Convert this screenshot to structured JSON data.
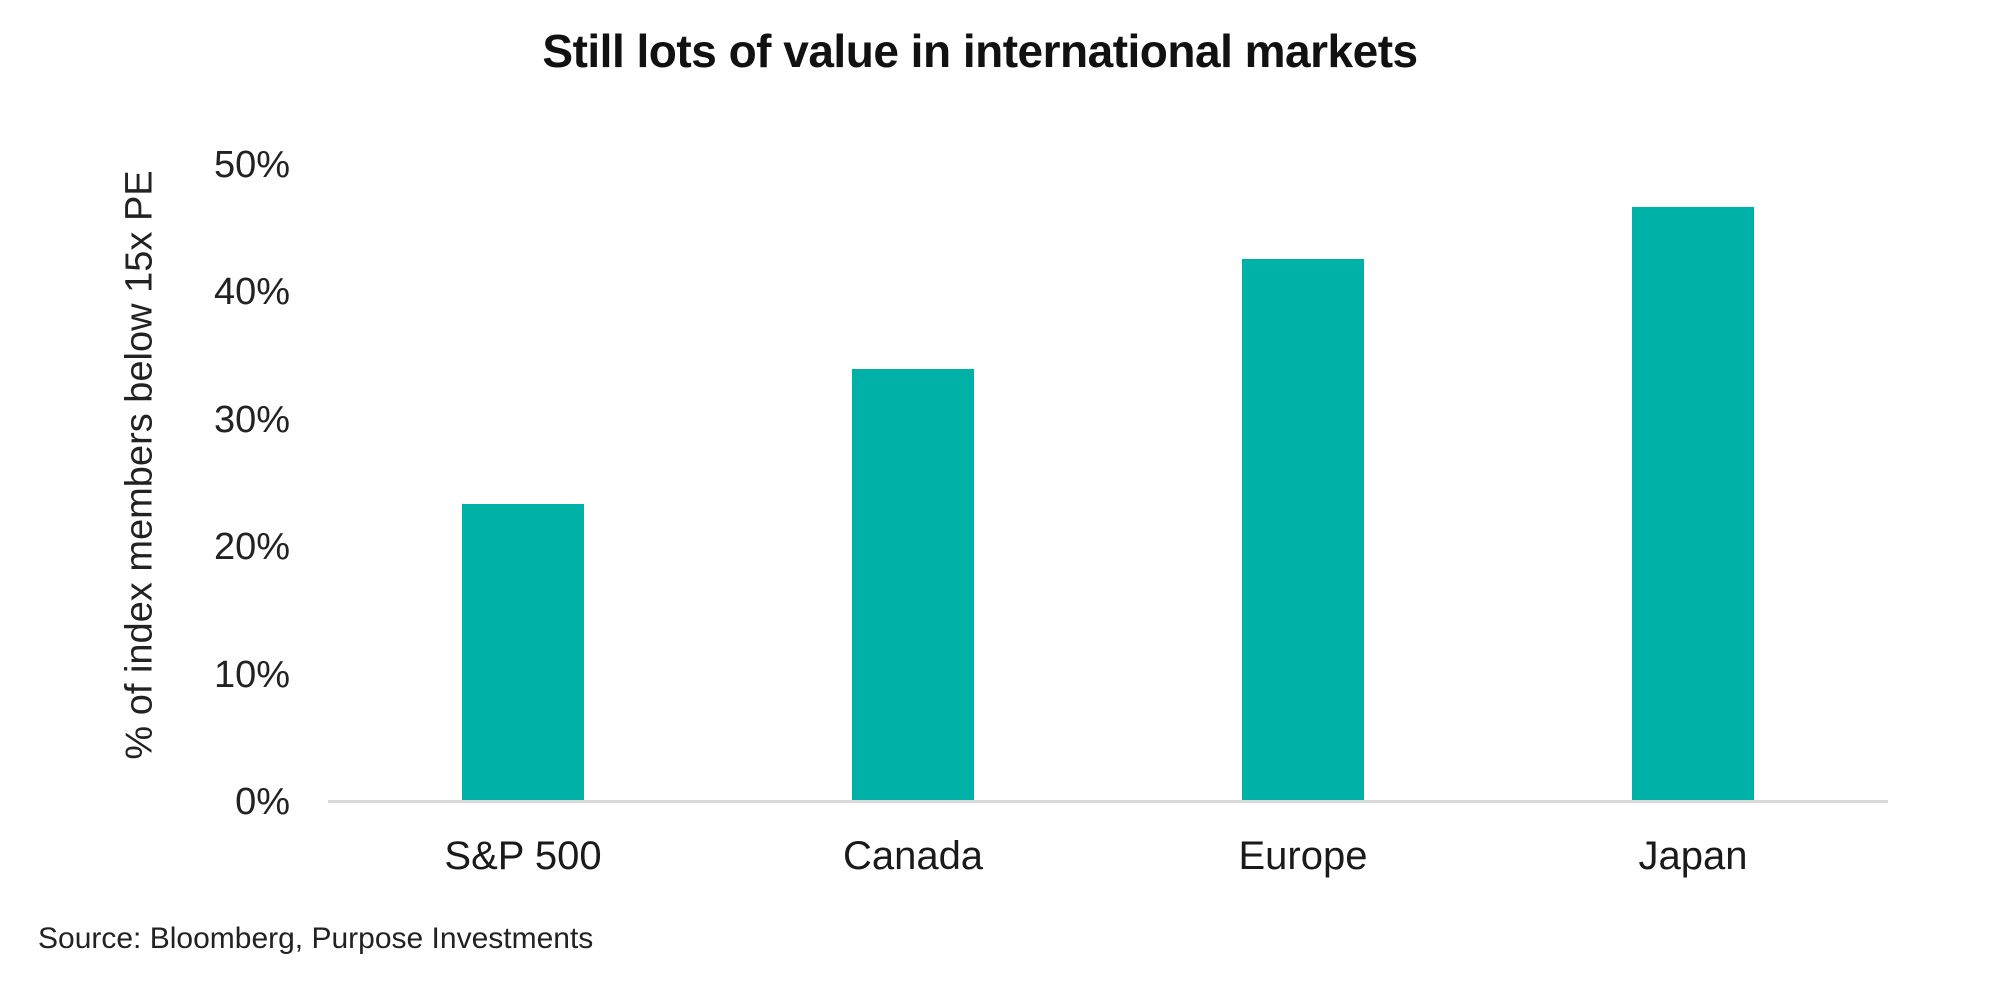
{
  "figure": {
    "background": "#ffffff",
    "source_note": "Source: Bloomberg, Purpose Investments"
  },
  "chart_data": {
    "type": "bar",
    "title": "Still lots of value in international markets",
    "categories": [
      "S&P 500",
      "Canada",
      "Europe",
      "Japan"
    ],
    "values": [
      23.4,
      34.0,
      42.6,
      46.7
    ],
    "xlabel": "",
    "ylabel": "% of index members below 15x PE",
    "ylim": [
      0,
      50
    ],
    "yticks": [
      0,
      10,
      20,
      30,
      40,
      50
    ],
    "ytick_labels": [
      "0%",
      "10%",
      "20%",
      "30%",
      "40%",
      "50%"
    ],
    "grid": false,
    "legend": false,
    "bar_color": "#00B1A8",
    "axis_line_color": "#D9D9D9",
    "title_color": "#111111",
    "text_color": "#222222"
  }
}
